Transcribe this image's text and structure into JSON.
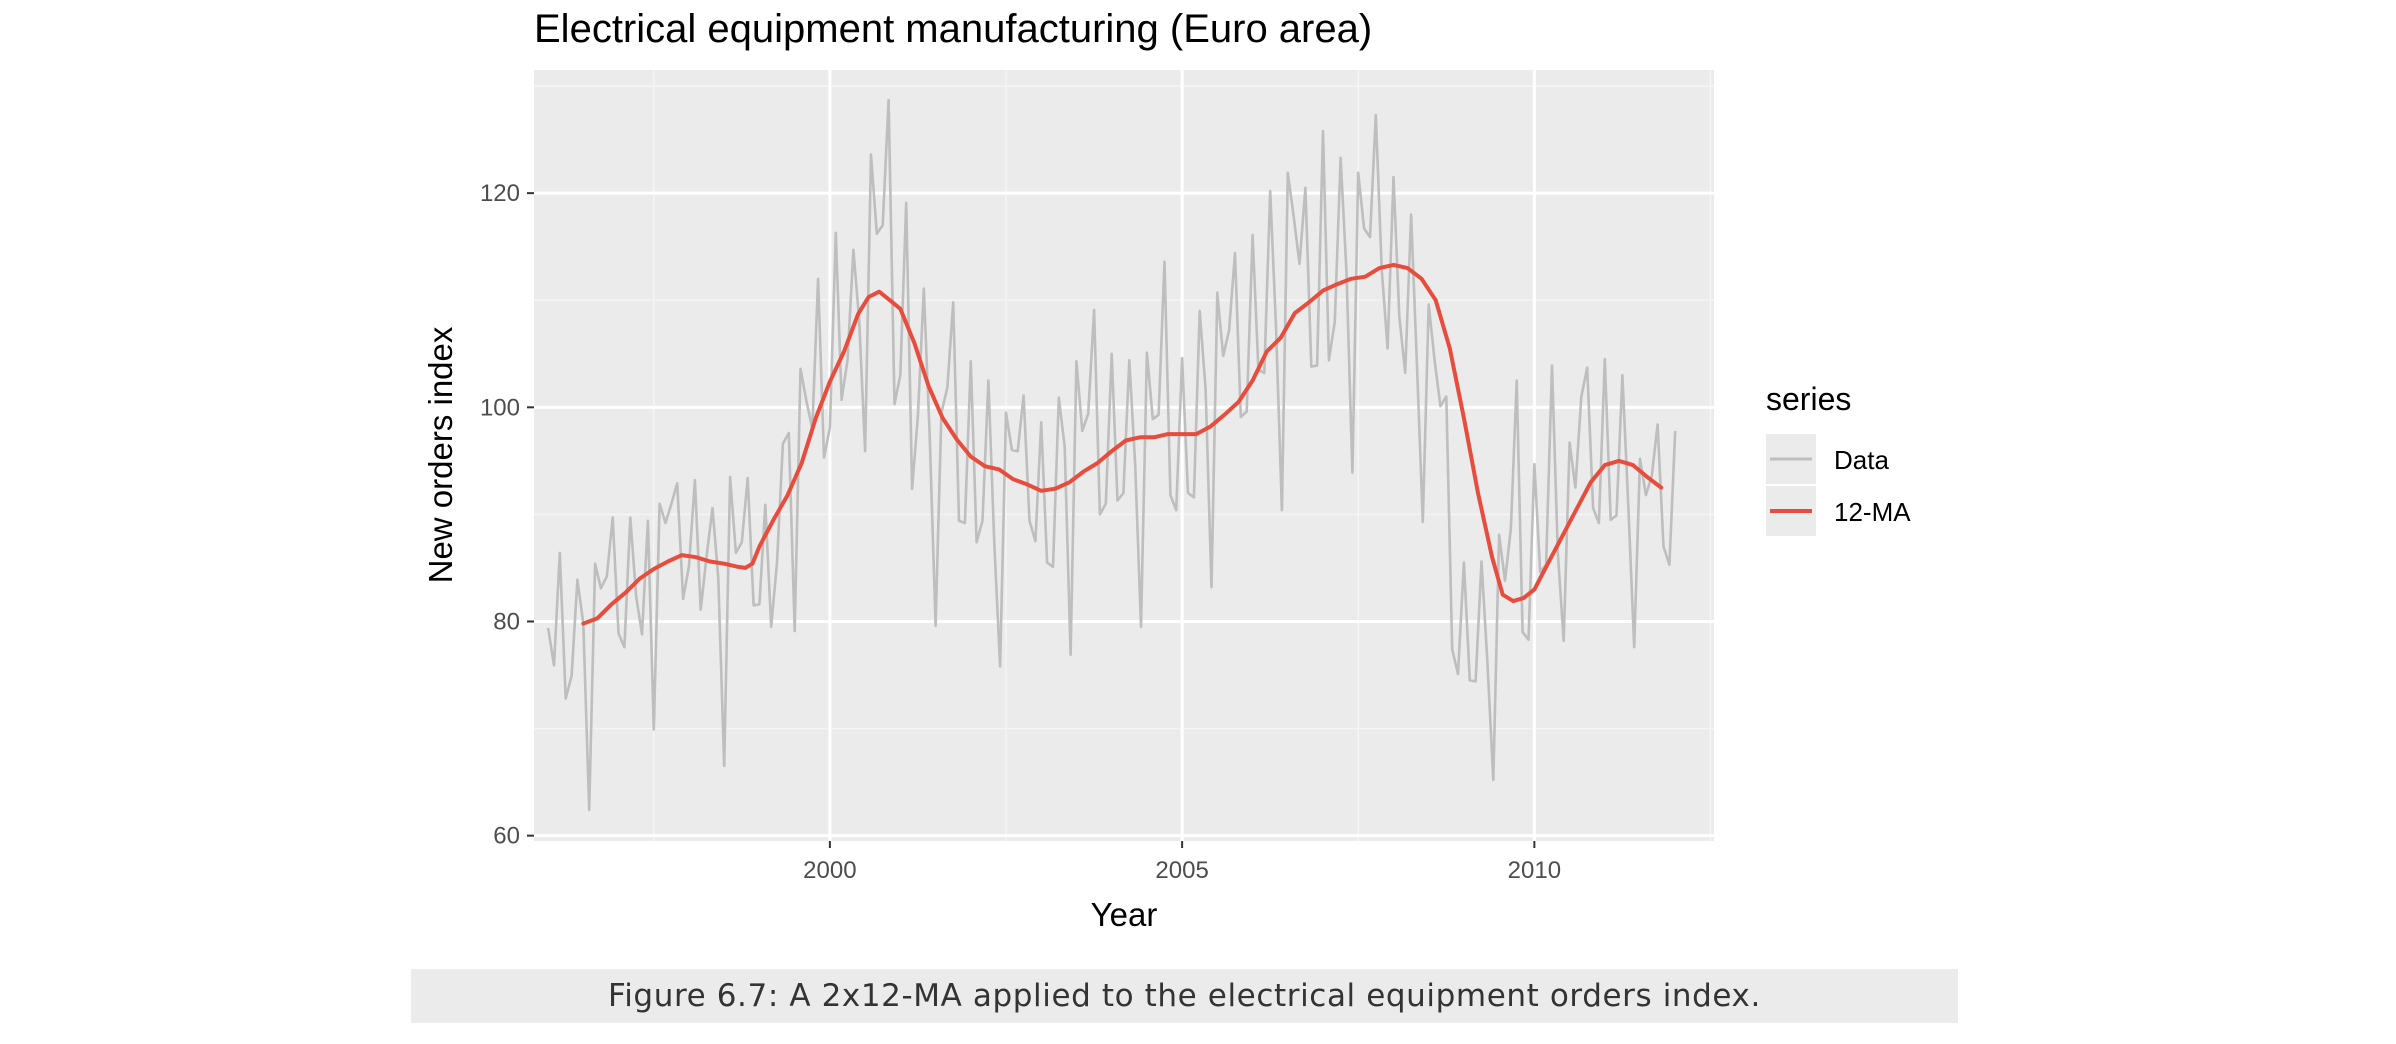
{
  "chart_data": {
    "type": "line",
    "title": "Electrical equipment manufacturing (Euro area)",
    "xlabel": "Year",
    "ylabel": "New orders index",
    "xlim": [
      1995.8,
      2012.55
    ],
    "ylim": [
      59.5,
      131.5
    ],
    "x_ticks": [
      2000,
      2005,
      2010
    ],
    "y_ticks": [
      60,
      80,
      100,
      120
    ],
    "grid": true,
    "legend": {
      "title": "series",
      "placement": "right"
    },
    "series": [
      {
        "name": "Data",
        "color": "#bebebe",
        "x_start": 1996.0,
        "x_step": 0.083333,
        "values": [
          79.4,
          75.9,
          86.4,
          72.8,
          74.9,
          83.9,
          79.8,
          62.4,
          85.4,
          83.1,
          84.2,
          89.7,
          78.9,
          77.6,
          89.7,
          82.4,
          78.8,
          89.4,
          69.9,
          91.0,
          89.2,
          91.0,
          92.9,
          82.1,
          85.2,
          93.2,
          81.1,
          86.1,
          90.6,
          84.0,
          66.5,
          93.5,
          86.4,
          87.4,
          93.4,
          81.5,
          81.6,
          90.9,
          79.5,
          85.5,
          96.6,
          97.6,
          79.1,
          103.6,
          100.6,
          98.0,
          112.0,
          95.3,
          98.1,
          116.3,
          100.7,
          104.4,
          114.7,
          108.1,
          95.9,
          123.6,
          116.2,
          117.0,
          128.7,
          100.3,
          103.0,
          119.1,
          92.4,
          99.2,
          111.1,
          97.3,
          79.6,
          99.5,
          101.8,
          109.8,
          89.4,
          89.2,
          104.3,
          87.4,
          89.4,
          102.5,
          87.3,
          75.8,
          99.5,
          96.0,
          95.9,
          101.1,
          89.4,
          87.5,
          98.6,
          85.5,
          85.1,
          100.9,
          96.3,
          76.9,
          104.3,
          97.8,
          99.4,
          109.1,
          90.0,
          91.0,
          105.0,
          91.3,
          92.0,
          104.4,
          94.6,
          79.5,
          105.1,
          98.9,
          99.3,
          113.6,
          91.8,
          90.4,
          104.6,
          92.0,
          91.6,
          109.0,
          101.7,
          83.2,
          110.7,
          104.8,
          107.2,
          114.4,
          99.1,
          99.6,
          116.1,
          103.5,
          103.2,
          120.2,
          107.5,
          90.4,
          121.9,
          117.8,
          113.4,
          120.5,
          103.8,
          103.9,
          125.8,
          104.4,
          108.0,
          123.3,
          112.6,
          93.9,
          121.9,
          116.7,
          115.9,
          127.3,
          112.9,
          105.5,
          121.5,
          108.5,
          103.2,
          118.0,
          104.1,
          89.3,
          109.6,
          104.4,
          100.1,
          101.0,
          77.4,
          75.1,
          85.5,
          74.5,
          74.4,
          85.6,
          76.2,
          65.2,
          88.1,
          83.8,
          88.7,
          102.5,
          79.0,
          78.3,
          94.7,
          84.6,
          85.3,
          103.9,
          86.4,
          78.2,
          96.7,
          92.5,
          101.0,
          103.7,
          90.6,
          89.2,
          104.5,
          89.5,
          89.9,
          103.0,
          90.8,
          77.6,
          95.2,
          91.8,
          93.6,
          98.4,
          87.0,
          85.3,
          97.8
        ]
      },
      {
        "name": "12-MA",
        "color": "#e74c3c",
        "x": [
          1996.5,
          1996.7,
          1996.9,
          1997.1,
          1997.3,
          1997.5,
          1997.7,
          1997.9,
          1998.1,
          1998.3,
          1998.5,
          1998.7,
          1998.8,
          1998.9,
          1999.0,
          1999.2,
          1999.4,
          1999.6,
          1999.8,
          2000.0,
          2000.2,
          2000.4,
          2000.55,
          2000.7,
          2000.85,
          2001.0,
          2001.2,
          2001.4,
          2001.6,
          2001.8,
          2002.0,
          2002.2,
          2002.4,
          2002.6,
          2002.8,
          2003.0,
          2003.2,
          2003.4,
          2003.6,
          2003.8,
          2004.0,
          2004.2,
          2004.4,
          2004.6,
          2004.8,
          2005.0,
          2005.2,
          2005.4,
          2005.6,
          2005.8,
          2006.0,
          2006.2,
          2006.4,
          2006.6,
          2006.8,
          2007.0,
          2007.2,
          2007.4,
          2007.6,
          2007.8,
          2008.0,
          2008.2,
          2008.4,
          2008.6,
          2008.8,
          2009.0,
          2009.2,
          2009.4,
          2009.55,
          2009.7,
          2009.85,
          2010.0,
          2010.2,
          2010.4,
          2010.6,
          2010.8,
          2011.0,
          2011.2,
          2011.4,
          2011.6,
          2011.8
        ],
        "values": [
          79.8,
          80.3,
          81.6,
          82.7,
          84.0,
          84.9,
          85.6,
          86.2,
          86.0,
          85.6,
          85.4,
          85.1,
          85.0,
          85.4,
          87.0,
          89.5,
          91.8,
          94.8,
          99.0,
          102.4,
          105.2,
          108.7,
          110.3,
          110.8,
          110.0,
          109.2,
          106.0,
          102.0,
          99.0,
          97.0,
          95.4,
          94.5,
          94.2,
          93.3,
          92.8,
          92.2,
          92.4,
          93.0,
          94.0,
          94.8,
          95.9,
          96.9,
          97.2,
          97.2,
          97.5,
          97.5,
          97.5,
          98.2,
          99.3,
          100.5,
          102.5,
          105.2,
          106.5,
          108.8,
          109.8,
          110.9,
          111.5,
          112.0,
          112.2,
          113.0,
          113.3,
          113.0,
          112.0,
          110.0,
          105.5,
          99.0,
          92.0,
          86.0,
          82.5,
          81.9,
          82.2,
          83.0,
          85.5,
          88.0,
          90.5,
          93.0,
          94.6,
          95.0,
          94.6,
          93.5,
          92.5
        ]
      }
    ]
  },
  "caption": "Figure 6.7: A 2x12-MA applied to the electrical equipment orders index."
}
